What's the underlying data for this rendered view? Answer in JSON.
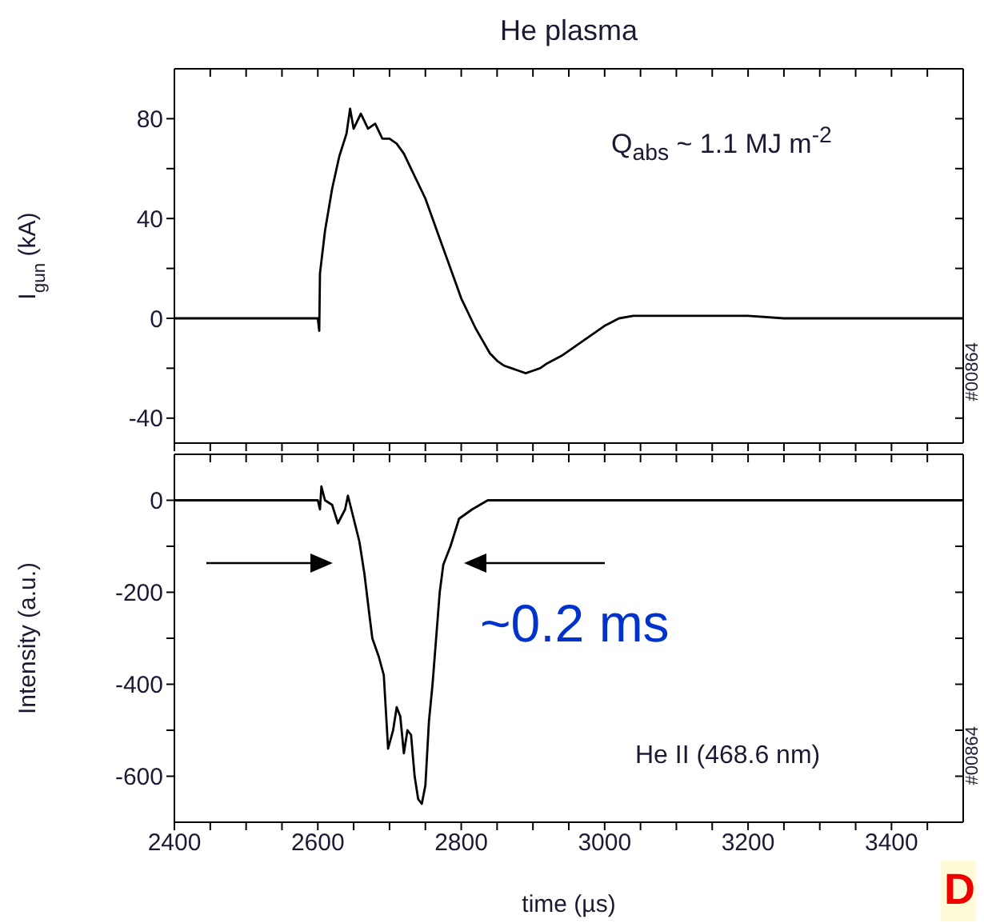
{
  "chart_data": [
    {
      "type": "line",
      "title": "He plasma",
      "ylabel": "I$_{gun}$ (kA)",
      "annotations": [
        "Q$_{abs}$ ~ 1.1 MJ m$^{-2}$",
        "#00864"
      ],
      "color": "#000000",
      "marker": "none",
      "tick_labels": "y",
      "xlim": [
        2400,
        3500
      ],
      "ylim": [
        -50,
        100
      ],
      "xticks": [
        2400,
        {
          "value": 2450,
          "label": null
        },
        {
          "value": 2500,
          "label": null
        },
        {
          "value": 2550,
          "label": null
        },
        2600,
        {
          "value": 2650,
          "label": null
        },
        {
          "value": 2700,
          "label": null
        },
        {
          "value": 2750,
          "label": null
        },
        2800,
        {
          "value": 2850,
          "label": null
        },
        {
          "value": 2900,
          "label": null
        },
        {
          "value": 2950,
          "label": null
        },
        3000,
        {
          "value": 3050,
          "label": null
        },
        {
          "value": 3100,
          "label": null
        },
        {
          "value": 3150,
          "label": null
        },
        3200,
        {
          "value": 3250,
          "label": null
        },
        {
          "value": 3300,
          "label": null
        },
        {
          "value": 3350,
          "label": null
        },
        3400,
        {
          "value": 3450,
          "label": null
        }
      ],
      "yticks": [
        -40,
        {
          "value": -20,
          "label": null
        },
        0,
        {
          "value": 20,
          "label": null
        },
        40,
        {
          "value": 60,
          "label": null
        },
        80
      ],
      "x": [
        2400,
        2500,
        2600,
        2602,
        2603,
        2610,
        2620,
        2630,
        2640,
        2645,
        2650,
        2660,
        2670,
        2680,
        2690,
        2700,
        2710,
        2720,
        2730,
        2740,
        2750,
        2760,
        2770,
        2780,
        2790,
        2800,
        2810,
        2820,
        2830,
        2840,
        2850,
        2860,
        2870,
        2880,
        2890,
        2900,
        2910,
        2920,
        2940,
        2960,
        2980,
        3000,
        3020,
        3040,
        3100,
        3200,
        3250,
        3500
      ],
      "values": [
        0,
        0,
        0,
        -5,
        18,
        35,
        52,
        65,
        74,
        84,
        76,
        82,
        76,
        78,
        72,
        72,
        70,
        66,
        60,
        54,
        48,
        40,
        32,
        24,
        16,
        8,
        2,
        -4,
        -9,
        -14,
        -17,
        -19,
        -20,
        -21,
        -22,
        -21,
        -20,
        -18,
        -15,
        -11,
        -7,
        -3,
        0,
        1,
        1,
        1,
        0,
        0
      ]
    },
    {
      "type": "line",
      "xlabel": "time (µs)",
      "ylabel": "Intensity (a.u.)",
      "annotations": [
        "~0.2 ms",
        "He II (468.6 nm)",
        "#00864",
        "D"
      ],
      "color": "#000000",
      "marker": "none",
      "xlim": [
        2400,
        3500
      ],
      "ylim": [
        -700,
        100
      ],
      "xticks": [
        2400,
        {
          "value": 2450,
          "label": null
        },
        {
          "value": 2500,
          "label": null
        },
        {
          "value": 2550,
          "label": null
        },
        2600,
        {
          "value": 2650,
          "label": null
        },
        {
          "value": 2700,
          "label": null
        },
        {
          "value": 2750,
          "label": null
        },
        2800,
        {
          "value": 2850,
          "label": null
        },
        {
          "value": 2900,
          "label": null
        },
        {
          "value": 2950,
          "label": null
        },
        3000,
        {
          "value": 3050,
          "label": null
        },
        {
          "value": 3100,
          "label": null
        },
        {
          "value": 3150,
          "label": null
        },
        3200,
        {
          "value": 3250,
          "label": null
        },
        {
          "value": 3300,
          "label": null
        },
        {
          "value": 3350,
          "label": null
        },
        3400,
        {
          "value": 3450,
          "label": null
        }
      ],
      "yticks": [
        -600,
        {
          "value": -500,
          "label": null
        },
        -400,
        {
          "value": -300,
          "label": null
        },
        -200,
        {
          "value": -100,
          "label": null
        },
        0
      ],
      "x": [
        2400,
        2600,
        2603,
        2605,
        2610,
        2620,
        2628,
        2638,
        2642,
        2650,
        2658,
        2665,
        2672,
        2676,
        2685,
        2692,
        2698,
        2705,
        2710,
        2715,
        2720,
        2725,
        2730,
        2735,
        2740,
        2745,
        2750,
        2755,
        2760,
        2765,
        2770,
        2775,
        2785,
        2797,
        2815,
        2837,
        3500
      ],
      "values": [
        0,
        0,
        -20,
        30,
        0,
        -10,
        -50,
        -20,
        10,
        -40,
        -90,
        -160,
        -250,
        -300,
        -340,
        -380,
        -540,
        -500,
        -450,
        -470,
        -550,
        -500,
        -510,
        -600,
        -650,
        -660,
        -620,
        -480,
        -400,
        -300,
        -200,
        -140,
        -100,
        -40,
        -20,
        0,
        0
      ]
    }
  ]
}
